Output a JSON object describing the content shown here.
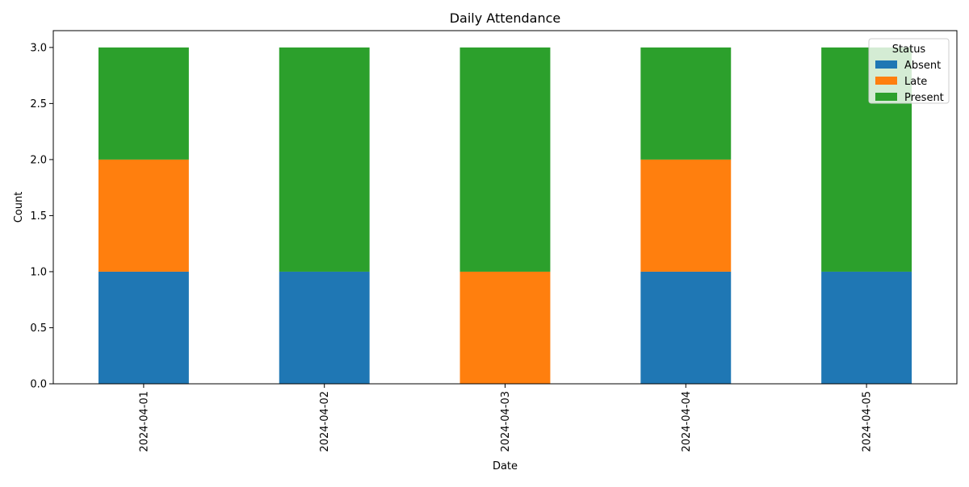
{
  "chart_data": {
    "type": "bar",
    "stacked": true,
    "title": "Daily Attendance",
    "xlabel": "Date",
    "ylabel": "Count",
    "categories": [
      "2024-04-01",
      "2024-04-02",
      "2024-04-03",
      "2024-04-04",
      "2024-04-05"
    ],
    "series": [
      {
        "name": "Absent",
        "color": "#1f77b4",
        "values": [
          1,
          1,
          0,
          1,
          1
        ]
      },
      {
        "name": "Late",
        "color": "#ff7f0e",
        "values": [
          1,
          0,
          1,
          1,
          0
        ]
      },
      {
        "name": "Present",
        "color": "#2ca02c",
        "values": [
          1,
          2,
          2,
          1,
          2
        ]
      }
    ],
    "ylim": [
      0,
      3.15
    ],
    "yticks": [
      "0.0",
      "0.5",
      "1.0",
      "1.5",
      "2.0",
      "2.5",
      "3.0"
    ],
    "grid": false,
    "legend": {
      "title": "Status",
      "placement": "top-right"
    }
  }
}
